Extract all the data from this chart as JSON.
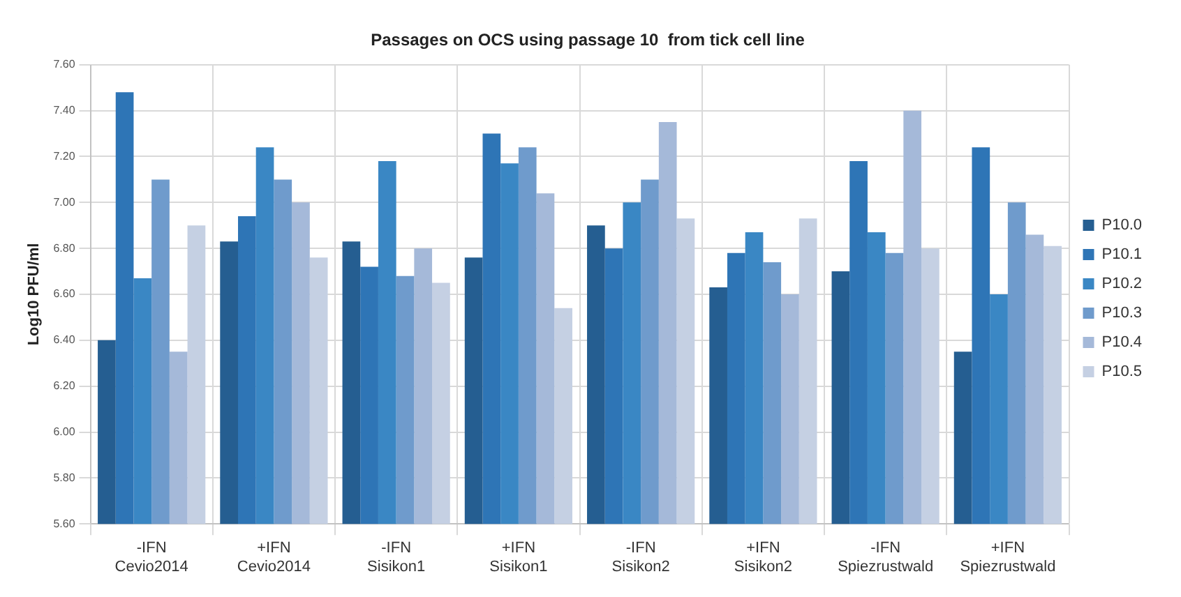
{
  "chart_data": {
    "type": "bar",
    "title": "Passages on OCS using passage 10  from tick cell line",
    "ylabel": "Log10 PFU/ml",
    "categories": [
      "-IFN\nCevio2014",
      "+IFN\nCevio2014",
      "-IFN\nSisikon1",
      "+IFN\nSisikon1",
      "-IFN\nSisikon2",
      "+IFN\nSisikon2",
      "-IFN\nSpiezrustwald",
      "+IFN\nSpiezrustwald"
    ],
    "series": [
      {
        "name": "P10.0",
        "color": "#255e91",
        "values": [
          6.4,
          6.83,
          6.83,
          6.76,
          6.9,
          6.63,
          6.7,
          6.35
        ]
      },
      {
        "name": "P10.1",
        "color": "#2e75b6",
        "values": [
          7.48,
          6.94,
          6.72,
          7.3,
          6.8,
          6.78,
          7.18,
          7.24
        ]
      },
      {
        "name": "P10.2",
        "color": "#3a87c4",
        "values": [
          6.67,
          7.24,
          7.18,
          7.17,
          7.0,
          6.87,
          6.87,
          6.6
        ]
      },
      {
        "name": "P10.3",
        "color": "#6f9bcc",
        "values": [
          7.1,
          7.1,
          6.68,
          7.24,
          7.1,
          6.74,
          6.78,
          7.0
        ]
      },
      {
        "name": "P10.4",
        "color": "#a5b9d9",
        "values": [
          6.35,
          7.0,
          6.8,
          7.04,
          7.35,
          6.6,
          7.4,
          6.86
        ]
      },
      {
        "name": "P10.5",
        "color": "#c5d0e3",
        "values": [
          6.9,
          6.76,
          6.65,
          6.54,
          6.93,
          6.93,
          6.8,
          6.81
        ]
      }
    ],
    "ylim": [
      5.6,
      7.6
    ],
    "yticks": [
      {
        "value": 5.6,
        "label": "5.60"
      },
      {
        "value": 5.8,
        "label": "5.80"
      },
      {
        "value": 6.0,
        "label": "6.00"
      },
      {
        "value": 6.2,
        "label": "6.20"
      },
      {
        "value": 6.4,
        "label": "6.40"
      },
      {
        "value": 6.6,
        "label": "6.60"
      },
      {
        "value": 6.8,
        "label": "6.80"
      },
      {
        "value": 7.0,
        "label": "7.00"
      },
      {
        "value": 7.2,
        "label": "7.20"
      },
      {
        "value": 7.4,
        "label": "7.40"
      },
      {
        "value": 7.6,
        "label": "7.60"
      }
    ],
    "grid": true,
    "legend": "right"
  }
}
